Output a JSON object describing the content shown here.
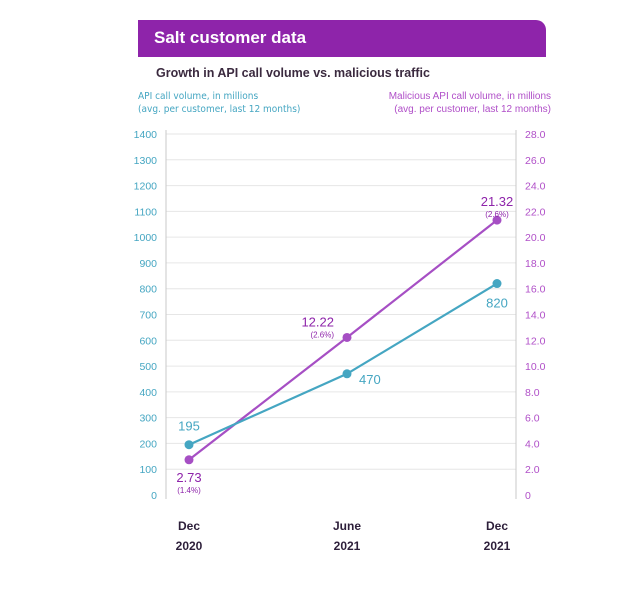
{
  "header": {
    "title": "Salt customer data"
  },
  "chart_data": {
    "type": "line",
    "title": "Growth in API call volume vs. malicious traffic",
    "categories": [
      "Dec\n2020",
      "June\n2021",
      "Dec\n2021"
    ],
    "x_labels": [
      [
        "Dec",
        "2020"
      ],
      [
        "June",
        "2021"
      ],
      [
        "Dec",
        "2021"
      ]
    ],
    "ylabel_left": [
      "API call volume, in millions",
      "(avg. per customer, last 12 months)"
    ],
    "ylabel_right": [
      "Malicious API call volume, in millions",
      "(avg. per customer, last 12 months)"
    ],
    "ylim_left": [
      0,
      1400
    ],
    "ylim_right": [
      0,
      28
    ],
    "yticks_left": [
      "0",
      "100",
      "200",
      "300",
      "400",
      "500",
      "600",
      "700",
      "800",
      "900",
      "1000",
      "1100",
      "1200",
      "1300",
      "1400"
    ],
    "yticks_right": [
      "0",
      "2.0",
      "4.0",
      "6.0",
      "8.0",
      "10.0",
      "12.0",
      "14.0",
      "16.0",
      "18.0",
      "20.0",
      "22.0",
      "24.0",
      "26.0",
      "28.0"
    ],
    "grid": true,
    "series": [
      {
        "axis": "left",
        "color": "#45a6c2",
        "values": [
          195,
          470,
          820
        ],
        "labels": [
          "195",
          "470",
          "820"
        ]
      },
      {
        "axis": "right",
        "color": "#a64fc4",
        "values": [
          2.73,
          12.22,
          21.32
        ],
        "labels": [
          "2.73",
          "12.22",
          "21.32"
        ],
        "percent_labels": [
          "(1.4%)",
          "(2.6%)",
          "(2.6%)"
        ]
      }
    ]
  }
}
